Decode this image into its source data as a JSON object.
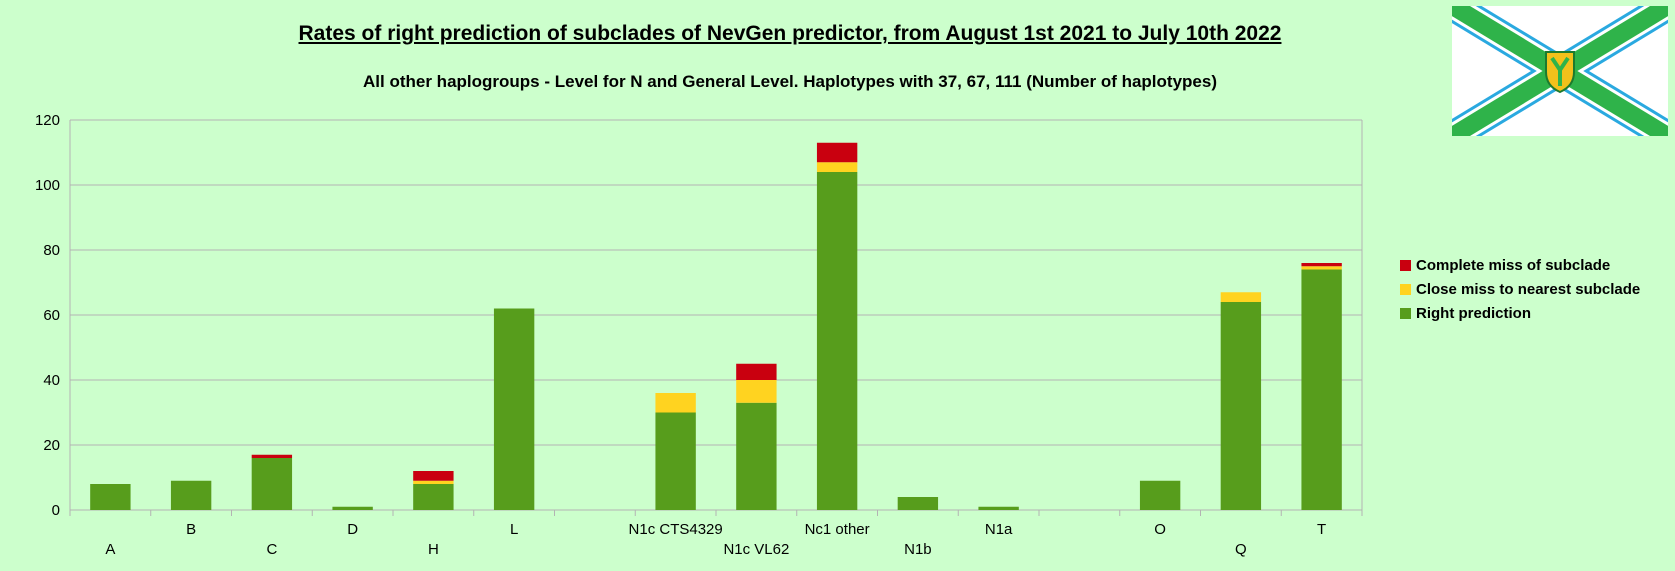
{
  "chart_data": {
    "type": "bar",
    "stacked": true,
    "title": "Rates of right prediction of subclades of NevGen predictor, from August 1st 2021 to July 10th 2022",
    "subtitle": "All other haplogroups - Level for N and General Level. Haplotypes with 37, 67, 111 (Number of haplotypes)",
    "categories": [
      "A",
      "B",
      "C",
      "D",
      "H",
      "L",
      "",
      "N1c CTS4329",
      "N1c VL62",
      "Nc1 other",
      "N1b",
      "N1a",
      "",
      "O",
      "Q",
      "T"
    ],
    "series": [
      {
        "name": "Right prediction",
        "color": "#579d1c",
        "values": [
          8,
          9,
          16,
          1,
          8,
          62,
          0,
          30,
          33,
          104,
          4,
          1,
          0,
          9,
          64,
          74
        ]
      },
      {
        "name": "Close miss to nearest subclade",
        "color": "#ffd320",
        "values": [
          0,
          0,
          0,
          0,
          1,
          0,
          0,
          6,
          7,
          3,
          0,
          0,
          0,
          0,
          3,
          1
        ]
      },
      {
        "name": "Complete miss of subclade",
        "color": "#c9000f",
        "values": [
          0,
          0,
          1,
          0,
          3,
          0,
          0,
          0,
          5,
          6,
          0,
          0,
          0,
          0,
          0,
          1
        ]
      }
    ],
    "ylim": [
      0,
      120
    ],
    "yticks": [
      0,
      20,
      40,
      60,
      80,
      100,
      120
    ],
    "grid": true,
    "legend_position": "right",
    "legend_order": [
      "Complete miss of subclade",
      "Close miss to nearest subclade",
      "Right prediction"
    ]
  },
  "colors": {
    "background": "#ccffcc",
    "grid": "#b3b3b3",
    "flag_green": "#2fb34a",
    "flag_blue": "#2aa9e0",
    "flag_gold": "#f2c11b"
  },
  "flag": {
    "icon": "emblem-flag-icon"
  }
}
